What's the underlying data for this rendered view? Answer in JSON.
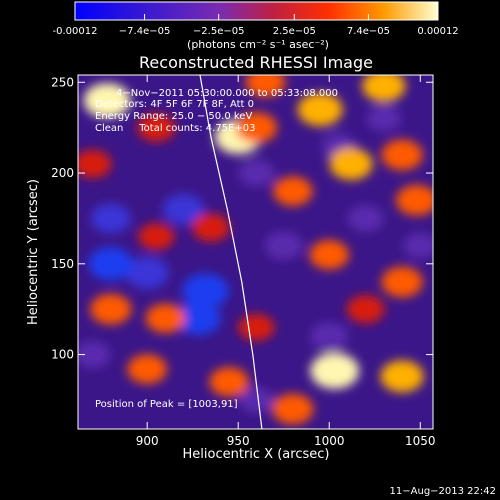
{
  "chart_data": {
    "type": "heatmap",
    "title": "Reconstructed RHESSI Image",
    "xlabel": "Heliocentric X (arcsec)",
    "ylabel": "Heliocentric Y (arcsec)",
    "xlim": [
      862,
      1057
    ],
    "ylim": [
      59,
      254
    ],
    "xticks": [
      900,
      950,
      1000,
      1050
    ],
    "yticks": [
      100,
      150,
      200,
      250
    ],
    "colorbar": {
      "range": [
        -0.00012,
        0.00012
      ],
      "tick_values": [
        -0.00012,
        -7.4e-05,
        -2.5e-05,
        2.5e-05,
        7.4e-05,
        0.00012
      ],
      "tick_labels": [
        "-0.00012",
        "−7.4e−05",
        "−2.5e−05",
        "2.5e−05",
        "7.4e−05",
        "0.00012"
      ],
      "unit_label": "(photons cm⁻² s⁻¹ asec⁻²)",
      "colors": [
        "#0000ff",
        "#4b1aa0",
        "#8a2fb0",
        "#ff2a00",
        "#ff8a00",
        "#ffffc8"
      ]
    },
    "annotations": {
      "time_range": "4−Nov−2011 05:30:00.000 to 05:33:08.000",
      "detectors": "Detectors: 4F 5F 6F 7F 8F, Att 0",
      "energy_range": "Energy Range: 25.0 − 50.0 keV",
      "clean_counts": "Clean     Total counts: 4.75E+03",
      "peak": "Position of Peak = [1003,91]"
    },
    "peak_position": [
      1003,
      91
    ],
    "limb": {
      "x": [
        929,
        935,
        944,
        952,
        958,
        963
      ],
      "y": [
        254,
        220,
        180,
        140,
        100,
        59
      ]
    },
    "hot_spots": [
      {
        "x": 878,
        "y": 240,
        "v": 0.00011
      },
      {
        "x": 905,
        "y": 225,
        "v": 6e-05
      },
      {
        "x": 950,
        "y": 220,
        "v": 0.00011
      },
      {
        "x": 960,
        "y": 225,
        "v": 8e-05
      },
      {
        "x": 995,
        "y": 235,
        "v": 0.0001
      },
      {
        "x": 1030,
        "y": 248,
        "v": 9e-05
      },
      {
        "x": 1040,
        "y": 210,
        "v": 8e-05
      },
      {
        "x": 1012,
        "y": 205,
        "v": 9e-05
      },
      {
        "x": 980,
        "y": 190,
        "v": 7e-05
      },
      {
        "x": 1048,
        "y": 185,
        "v": 8e-05
      },
      {
        "x": 935,
        "y": 170,
        "v": 6e-05
      },
      {
        "x": 905,
        "y": 165,
        "v": 5e-05
      },
      {
        "x": 1000,
        "y": 155,
        "v": 7e-05
      },
      {
        "x": 1040,
        "y": 140,
        "v": 8e-05
      },
      {
        "x": 1020,
        "y": 125,
        "v": 6e-05
      },
      {
        "x": 880,
        "y": 125,
        "v": 8e-05
      },
      {
        "x": 910,
        "y": 120,
        "v": 7e-05
      },
      {
        "x": 960,
        "y": 115,
        "v": 5e-05
      },
      {
        "x": 900,
        "y": 92,
        "v": 7e-05
      },
      {
        "x": 945,
        "y": 85,
        "v": 7e-05
      },
      {
        "x": 1003,
        "y": 91,
        "v": 0.00012
      },
      {
        "x": 1040,
        "y": 88,
        "v": 9e-05
      },
      {
        "x": 980,
        "y": 70,
        "v": 8e-05
      },
      {
        "x": 870,
        "y": 205,
        "v": 6e-05
      },
      {
        "x": 965,
        "y": 250,
        "v": 7e-05
      }
    ],
    "cold_spots": [
      {
        "x": 920,
        "y": 180,
        "v": -8e-05
      },
      {
        "x": 880,
        "y": 175,
        "v": -7e-05
      },
      {
        "x": 900,
        "y": 145,
        "v": -9e-05
      },
      {
        "x": 880,
        "y": 150,
        "v": -0.0001
      },
      {
        "x": 932,
        "y": 135,
        "v": -0.00011
      },
      {
        "x": 928,
        "y": 120,
        "v": -0.0001
      },
      {
        "x": 975,
        "y": 160,
        "v": -6e-05
      },
      {
        "x": 1020,
        "y": 175,
        "v": -5e-05
      },
      {
        "x": 960,
        "y": 200,
        "v": -5e-05
      },
      {
        "x": 1000,
        "y": 110,
        "v": -6e-05
      },
      {
        "x": 870,
        "y": 100,
        "v": -5e-05
      },
      {
        "x": 1050,
        "y": 160,
        "v": -4e-05
      },
      {
        "x": 1030,
        "y": 230,
        "v": -4e-05
      },
      {
        "x": 960,
        "y": 75,
        "v": -4e-05
      },
      {
        "x": 1005,
        "y": 215,
        "v": -4e-05
      }
    ]
  },
  "footer": {
    "timestamp": "11−Aug−2013 22:42"
  }
}
